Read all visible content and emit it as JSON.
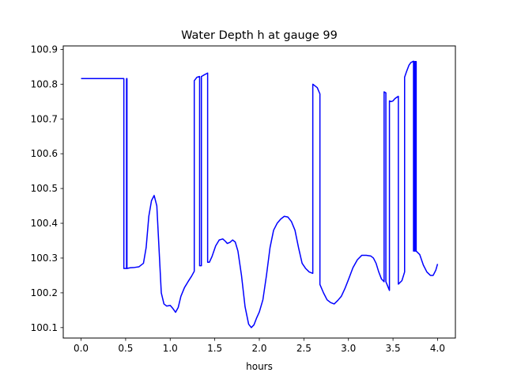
{
  "chart_data": {
    "type": "line",
    "title": "Water Depth h at gauge 99",
    "xlabel": "hours",
    "ylabel": "",
    "xlim": [
      -0.2,
      4.2
    ],
    "ylim": [
      100.07,
      100.91
    ],
    "xticks": [
      "0.0",
      "0.5",
      "1.0",
      "1.5",
      "2.0",
      "2.5",
      "3.0",
      "3.5",
      "4.0"
    ],
    "yticks": [
      "100.1",
      "100.2",
      "100.3",
      "100.4",
      "100.5",
      "100.6",
      "100.7",
      "100.8",
      "100.9"
    ],
    "grid": false,
    "line_color": "#0000ff",
    "series": [
      {
        "x": [
          0.0,
          0.48,
          0.48,
          0.51,
          0.51,
          0.515,
          0.515,
          0.55,
          0.6,
          0.65,
          0.7,
          0.73,
          0.76,
          0.79,
          0.82,
          0.85,
          0.88,
          0.9,
          0.93,
          0.96,
          1.0,
          1.03,
          1.06,
          1.09,
          1.12,
          1.16,
          1.2,
          1.24,
          1.27,
          1.27,
          1.3,
          1.33,
          1.33,
          1.35,
          1.35,
          1.37,
          1.37,
          1.42,
          1.42,
          1.44,
          1.47,
          1.51,
          1.55,
          1.59,
          1.62,
          1.64,
          1.67,
          1.7,
          1.73,
          1.76,
          1.8,
          1.84,
          1.88,
          1.91,
          1.94,
          1.97,
          2.0,
          2.04,
          2.08,
          2.12,
          2.16,
          2.2,
          2.24,
          2.28,
          2.32,
          2.36,
          2.4,
          2.44,
          2.48,
          2.52,
          2.56,
          2.6,
          2.6,
          2.65,
          2.68,
          2.68,
          2.72,
          2.76,
          2.8,
          2.84,
          2.88,
          2.92,
          2.96,
          3.0,
          3.05,
          3.1,
          3.15,
          3.2,
          3.25,
          3.28,
          3.31,
          3.34,
          3.37,
          3.4,
          3.4,
          3.42,
          3.42,
          3.46,
          3.46,
          3.48,
          3.5,
          3.52,
          3.54,
          3.56,
          3.56,
          3.6,
          3.63,
          3.63,
          3.65,
          3.68,
          3.7,
          3.73,
          3.73,
          3.74,
          3.74,
          3.75,
          3.75,
          3.76,
          3.76,
          3.8,
          3.84,
          3.88,
          3.92,
          3.95,
          3.98,
          4.0
        ],
        "y": [
          100.816,
          100.816,
          100.27,
          100.27,
          100.816,
          100.816,
          100.27,
          100.272,
          100.273,
          100.275,
          100.285,
          100.33,
          100.42,
          100.465,
          100.48,
          100.45,
          100.3,
          100.2,
          100.168,
          100.162,
          100.164,
          100.155,
          100.144,
          100.158,
          100.19,
          100.215,
          100.232,
          100.248,
          100.262,
          100.81,
          100.82,
          100.822,
          100.278,
          100.278,
          100.822,
          100.825,
          100.825,
          100.832,
          100.288,
          100.288,
          100.305,
          100.335,
          100.352,
          100.355,
          100.348,
          100.342,
          100.345,
          100.352,
          100.346,
          100.32,
          100.25,
          100.16,
          100.11,
          100.1,
          100.108,
          100.128,
          100.145,
          100.18,
          100.25,
          100.33,
          100.38,
          100.4,
          100.412,
          100.42,
          100.418,
          100.405,
          100.38,
          100.33,
          100.285,
          100.27,
          100.26,
          100.256,
          100.8,
          100.79,
          100.772,
          100.224,
          100.2,
          100.18,
          100.172,
          100.168,
          100.178,
          100.19,
          100.212,
          100.238,
          100.272,
          100.295,
          100.308,
          100.308,
          100.306,
          100.3,
          100.285,
          100.26,
          100.24,
          100.232,
          100.778,
          100.775,
          100.232,
          100.207,
          100.752,
          100.75,
          100.752,
          100.758,
          100.762,
          100.765,
          100.225,
          100.235,
          100.26,
          100.82,
          100.835,
          100.855,
          100.862,
          100.866,
          100.32,
          100.865,
          100.32,
          100.32,
          100.865,
          100.865,
          100.32,
          100.31,
          100.28,
          100.26,
          100.25,
          100.25,
          100.265,
          100.283
        ]
      }
    ]
  }
}
